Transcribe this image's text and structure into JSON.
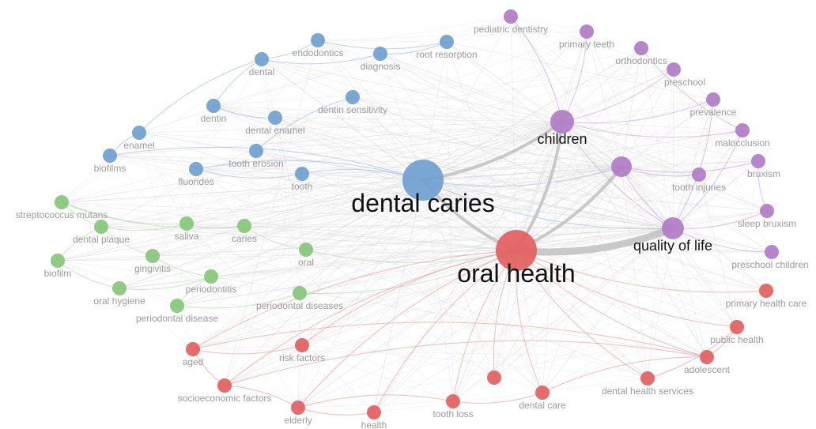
{
  "clusters": {
    "blue": {
      "color": "#6f9fcf",
      "edge": "#9ec0e3"
    },
    "green": {
      "color": "#86c77a",
      "edge": "#b5dcae"
    },
    "purple": {
      "color": "#b07cc6",
      "edge": "#cba7dc"
    },
    "red": {
      "color": "#e25f5f",
      "edge": "#eea0a0"
    }
  },
  "nodes": [
    {
      "id": "dental-caries",
      "label": "dental caries",
      "cluster": "blue",
      "weight": 5
    },
    {
      "id": "oral-health",
      "label": "oral health",
      "cluster": "red",
      "weight": 5
    },
    {
      "id": "children",
      "label": "children",
      "cluster": "purple",
      "weight": 3
    },
    {
      "id": "quality-of-life",
      "label": "quality of life",
      "cluster": "purple",
      "weight": 3
    },
    {
      "id": "unlabeled-purple",
      "label": "",
      "cluster": "purple",
      "weight": 2
    },
    {
      "id": "endodontics",
      "label": "endodontics",
      "cluster": "blue",
      "weight": 1
    },
    {
      "id": "diagnosis",
      "label": "diagnosis",
      "cluster": "blue",
      "weight": 1
    },
    {
      "id": "root-resorption",
      "label": "root resorption",
      "cluster": "blue",
      "weight": 1
    },
    {
      "id": "dental",
      "label": "dental",
      "cluster": "blue",
      "weight": 1
    },
    {
      "id": "dentin-sensitivity",
      "label": "dentin sensitivity",
      "cluster": "blue",
      "weight": 1
    },
    {
      "id": "dentin",
      "label": "dentin",
      "cluster": "blue",
      "weight": 1
    },
    {
      "id": "dental-enamel",
      "label": "dental enamel",
      "cluster": "blue",
      "weight": 1
    },
    {
      "id": "enamel",
      "label": "enamel",
      "cluster": "blue",
      "weight": 1
    },
    {
      "id": "biofilms",
      "label": "biofilms",
      "cluster": "blue",
      "weight": 1
    },
    {
      "id": "tooth-erosion",
      "label": "tooth erosion",
      "cluster": "blue",
      "weight": 1
    },
    {
      "id": "fluorides",
      "label": "fluorides",
      "cluster": "blue",
      "weight": 1
    },
    {
      "id": "tooth",
      "label": "tooth",
      "cluster": "blue",
      "weight": 1
    },
    {
      "id": "streptococcus-mutans",
      "label": "streptococcus mutans",
      "cluster": "green",
      "weight": 1
    },
    {
      "id": "dental-plaque",
      "label": "dental plaque",
      "cluster": "green",
      "weight": 1
    },
    {
      "id": "saliva",
      "label": "saliva",
      "cluster": "green",
      "weight": 1
    },
    {
      "id": "caries",
      "label": "caries",
      "cluster": "green",
      "weight": 1
    },
    {
      "id": "oral",
      "label": "oral",
      "cluster": "green",
      "weight": 1
    },
    {
      "id": "biofilm",
      "label": "biofilm",
      "cluster": "green",
      "weight": 1
    },
    {
      "id": "gingivitis",
      "label": "gingivitis",
      "cluster": "green",
      "weight": 1
    },
    {
      "id": "periodontitis",
      "label": "periodontitis",
      "cluster": "green",
      "weight": 1
    },
    {
      "id": "oral-hygiene",
      "label": "oral hygiene",
      "cluster": "green",
      "weight": 1
    },
    {
      "id": "periodontal-disease",
      "label": "periodontal disease",
      "cluster": "green",
      "weight": 1
    },
    {
      "id": "periodontal-diseases",
      "label": "periodontal diseases",
      "cluster": "green",
      "weight": 1
    },
    {
      "id": "pediatric-dentistry",
      "label": "pediatric dentistry",
      "cluster": "purple",
      "weight": 1
    },
    {
      "id": "primary-teeth",
      "label": "primary teeth",
      "cluster": "purple",
      "weight": 1
    },
    {
      "id": "orthodontics",
      "label": "orthodontics",
      "cluster": "purple",
      "weight": 1
    },
    {
      "id": "preschool",
      "label": "preschool",
      "cluster": "purple",
      "weight": 1
    },
    {
      "id": "prevalence",
      "label": "prevalence",
      "cluster": "purple",
      "weight": 1
    },
    {
      "id": "malocclusion",
      "label": "malocclusion",
      "cluster": "purple",
      "weight": 1
    },
    {
      "id": "bruxism",
      "label": "bruxism",
      "cluster": "purple",
      "weight": 1
    },
    {
      "id": "tooth-injuries",
      "label": "tooth injuries",
      "cluster": "purple",
      "weight": 1
    },
    {
      "id": "sleep-bruxism",
      "label": "sleep bruxism",
      "cluster": "purple",
      "weight": 1
    },
    {
      "id": "preschool-children",
      "label": "preschool children",
      "cluster": "purple",
      "weight": 1
    },
    {
      "id": "primary-health-care",
      "label": "primary health care",
      "cluster": "red",
      "weight": 1
    },
    {
      "id": "public-health",
      "label": "public health",
      "cluster": "red",
      "weight": 1
    },
    {
      "id": "adolescent",
      "label": "adolescent",
      "cluster": "red",
      "weight": 1
    },
    {
      "id": "dental-health-services",
      "label": "dental health services",
      "cluster": "red",
      "weight": 1
    },
    {
      "id": "dental-care",
      "label": "dental care",
      "cluster": "red",
      "weight": 1
    },
    {
      "id": "tooth-loss",
      "label": "tooth loss",
      "cluster": "red",
      "weight": 1
    },
    {
      "id": "health",
      "label": "health",
      "cluster": "red",
      "weight": 1
    },
    {
      "id": "elderly",
      "label": "elderly",
      "cluster": "red",
      "weight": 1
    },
    {
      "id": "socioeconomic-factors",
      "label": "socioeconomic factors",
      "cluster": "red",
      "weight": 1
    },
    {
      "id": "aged",
      "label": "aged",
      "cluster": "red",
      "weight": 1
    },
    {
      "id": "risk-factors",
      "label": "risk factors",
      "cluster": "red",
      "weight": 1
    },
    {
      "id": "unlabeled-red",
      "label": "",
      "cluster": "red",
      "weight": 1
    }
  ],
  "edges": [
    [
      "oral-health",
      "quality-of-life",
      3
    ],
    [
      "dental-caries",
      "children",
      2
    ],
    [
      "dental-caries",
      "oral-health",
      2
    ],
    [
      "oral-health",
      "children",
      2
    ],
    [
      "oral-health",
      "unlabeled-purple",
      2
    ],
    [
      "dental-caries",
      "unlabeled-purple",
      1
    ],
    [
      "dental-caries",
      "quality-of-life",
      1
    ],
    [
      "children",
      "quality-of-life",
      1
    ],
    [
      "unlabeled-purple",
      "quality-of-life",
      1
    ],
    [
      "dental-caries",
      "fluorides",
      1
    ],
    [
      "dental-caries",
      "biofilms",
      1
    ],
    [
      "dental-caries",
      "tooth",
      1
    ],
    [
      "dental",
      "endodontics",
      1
    ],
    [
      "dental",
      "diagnosis",
      1
    ],
    [
      "dental",
      "dentin",
      1
    ],
    [
      "dental",
      "enamel",
      1
    ],
    [
      "dentin",
      "dental-enamel",
      1
    ],
    [
      "dentin-sensitivity",
      "tooth-erosion",
      1
    ],
    [
      "endodontics",
      "root-resorption",
      1
    ],
    [
      "diagnosis",
      "root-resorption",
      1
    ],
    [
      "enamel",
      "biofilms",
      1
    ],
    [
      "fluorides",
      "tooth",
      1
    ],
    [
      "children",
      "preschool",
      1
    ],
    [
      "children",
      "prevalence",
      1
    ],
    [
      "children",
      "primary-teeth",
      1
    ],
    [
      "children",
      "pediatric-dentistry",
      1
    ],
    [
      "children",
      "malocclusion",
      1
    ],
    [
      "unlabeled-purple",
      "bruxism",
      1
    ],
    [
      "unlabeled-purple",
      "tooth-injuries",
      1
    ],
    [
      "quality-of-life",
      "sleep-bruxism",
      1
    ],
    [
      "quality-of-life",
      "preschool-children",
      1
    ],
    [
      "quality-of-life",
      "malocclusion",
      1
    ],
    [
      "quality-of-life",
      "prevalence",
      1
    ],
    [
      "orthodontics",
      "malocclusion",
      1
    ],
    [
      "bruxism",
      "sleep-bruxism",
      1
    ],
    [
      "streptococcus-mutans",
      "dental-plaque",
      1
    ],
    [
      "streptococcus-mutans",
      "saliva",
      1
    ],
    [
      "streptococcus-mutans",
      "caries",
      1
    ],
    [
      "dental-plaque",
      "saliva",
      1
    ],
    [
      "dental-plaque",
      "gingivitis",
      1
    ],
    [
      "dental-plaque",
      "biofilm",
      1
    ],
    [
      "biofilm",
      "oral-hygiene",
      1
    ],
    [
      "gingivitis",
      "periodontitis",
      1
    ],
    [
      "oral-hygiene",
      "periodontitis",
      1
    ],
    [
      "periodontitis",
      "periodontal-disease",
      1
    ],
    [
      "periodontal-disease",
      "periodontal-diseases",
      1
    ],
    [
      "saliva",
      "caries",
      1
    ],
    [
      "caries",
      "oral",
      1
    ],
    [
      "oral",
      "oral-health",
      1
    ],
    [
      "periodontal-diseases",
      "oral-health",
      1
    ],
    [
      "oral-health",
      "aged",
      1
    ],
    [
      "oral-health",
      "risk-factors",
      1
    ],
    [
      "oral-health",
      "socioeconomic-factors",
      1
    ],
    [
      "oral-health",
      "elderly",
      1
    ],
    [
      "oral-health",
      "health",
      1
    ],
    [
      "oral-health",
      "tooth-loss",
      1
    ],
    [
      "oral-health",
      "dental-care",
      1
    ],
    [
      "oral-health",
      "dental-health-services",
      1
    ],
    [
      "oral-health",
      "adolescent",
      1
    ],
    [
      "oral-health",
      "public-health",
      1
    ],
    [
      "oral-health",
      "primary-health-care",
      1
    ],
    [
      "oral-health",
      "unlabeled-red",
      1
    ],
    [
      "adolescent",
      "aged",
      1
    ],
    [
      "adolescent",
      "socioeconomic-factors",
      1
    ],
    [
      "adolescent",
      "dental-care",
      1
    ],
    [
      "adolescent",
      "public-health",
      1
    ],
    [
      "dental-health-services",
      "public-health",
      1
    ],
    [
      "aged",
      "socioeconomic-factors",
      1
    ],
    [
      "aged",
      "risk-factors",
      1
    ],
    [
      "elderly",
      "health",
      1
    ],
    [
      "elderly",
      "socioeconomic-factors",
      1
    ],
    [
      "tooth-loss",
      "dental-care",
      1
    ],
    [
      "tooth-loss",
      "elderly",
      1
    ]
  ]
}
